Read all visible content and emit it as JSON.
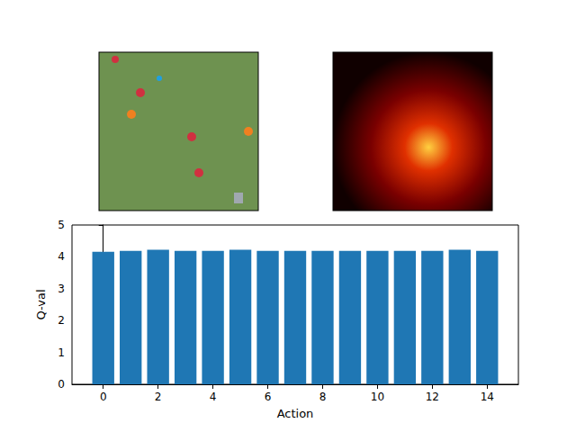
{
  "chart_data": {
    "type": "bar",
    "x": [
      0,
      1,
      2,
      3,
      4,
      5,
      6,
      7,
      8,
      9,
      10,
      11,
      12,
      13,
      14
    ],
    "values": [
      4.16,
      4.19,
      4.22,
      4.19,
      4.19,
      4.22,
      4.19,
      4.19,
      4.19,
      4.19,
      4.19,
      4.19,
      4.19,
      4.22,
      4.19
    ],
    "color": "#1f77b4",
    "xlabel": "Action",
    "ylabel": "Q-val",
    "xlim": [
      -1.14,
      15.14
    ],
    "xticks": [
      0,
      2,
      4,
      6,
      8,
      10,
      12,
      14
    ],
    "ylim": [
      0,
      5
    ],
    "yticks": [
      0,
      1,
      2,
      3,
      4,
      5
    ],
    "grid": false
  }
}
